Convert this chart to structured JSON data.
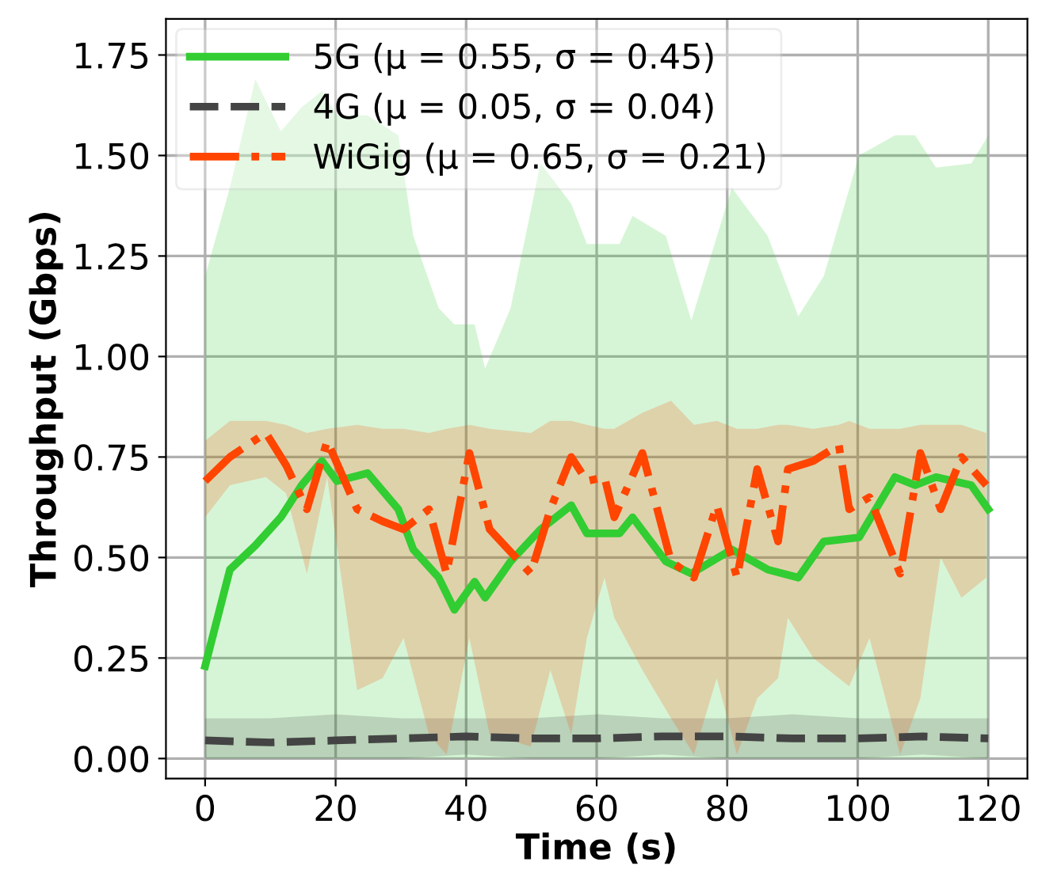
{
  "chart_data": {
    "type": "line",
    "xlabel": "Time (s)",
    "ylabel": "Throughput (Gbps)",
    "xlim": [
      -6,
      126
    ],
    "ylim": [
      -0.05,
      1.84
    ],
    "xticks": [
      0,
      20,
      40,
      60,
      80,
      100,
      120
    ],
    "yticks": [
      {
        "value": 0,
        "label": "0.00"
      },
      {
        "value": 0.25,
        "label": "0.25"
      },
      {
        "value": 0.5,
        "label": "0.50"
      },
      {
        "value": 0.75,
        "label": "0.75"
      },
      {
        "value": 1,
        "label": "1.00"
      },
      {
        "value": 1.25,
        "label": "1.25"
      },
      {
        "value": 1.5,
        "label": "1.50"
      },
      {
        "value": 1.75,
        "label": "1.75"
      }
    ],
    "grid": true,
    "legend": "top left",
    "series": [
      {
        "name": "5G (μ = 0.55, σ = 0.45)",
        "color": "#32cd32",
        "line_style": "solid",
        "x": [
          0,
          3.8,
          7.7,
          11.6,
          14.8,
          17.9,
          20.2,
          24.9,
          29.6,
          31.9,
          35.8,
          38.2,
          41.3,
          42.9,
          46.8,
          51.4,
          56.1,
          58.5,
          63.5,
          65.5,
          70.6,
          74.5,
          80.7,
          86.2,
          90.9,
          94.8,
          100.2,
          105.7,
          108.8,
          112,
          117.4,
          120
        ],
        "values": [
          0.23,
          0.47,
          0.53,
          0.6,
          0.68,
          0.74,
          0.69,
          0.71,
          0.62,
          0.52,
          0.45,
          0.37,
          0.44,
          0.4,
          0.49,
          0.57,
          0.63,
          0.56,
          0.56,
          0.6,
          0.49,
          0.46,
          0.52,
          0.47,
          0.45,
          0.54,
          0.55,
          0.7,
          0.68,
          0.7,
          0.68,
          0.62
        ],
        "upper": [
          1.2,
          1.42,
          1.69,
          1.56,
          1.62,
          1.66,
          1.6,
          1.6,
          1.55,
          1.3,
          1.12,
          1.08,
          1.08,
          0.97,
          1.12,
          1.48,
          1.38,
          1.28,
          1.28,
          1.35,
          1.3,
          1.09,
          1.42,
          1.3,
          1.1,
          1.2,
          1.5,
          1.55,
          1.55,
          1.47,
          1.48,
          1.55
        ],
        "lower": [
          0,
          0,
          0,
          0,
          0,
          0,
          0,
          0,
          0,
          0,
          0,
          0,
          0,
          0,
          0,
          0,
          0,
          0,
          0,
          0,
          0,
          0,
          0,
          0,
          0,
          0,
          0,
          0,
          0,
          0,
          0,
          0
        ]
      },
      {
        "name": "4G (μ = 0.05, σ = 0.04)",
        "color": "#444444",
        "line_style": "dashed",
        "x": [
          0,
          10,
          20,
          30,
          40,
          50,
          60,
          70,
          80,
          90,
          100,
          110,
          120
        ],
        "values": [
          0.045,
          0.04,
          0.045,
          0.05,
          0.055,
          0.05,
          0.05,
          0.055,
          0.055,
          0.05,
          0.05,
          0.055,
          0.05
        ],
        "upper": [
          0.1,
          0.1,
          0.11,
          0.1,
          0.1,
          0.1,
          0.11,
          0.1,
          0.1,
          0.11,
          0.1,
          0.1,
          0.1
        ],
        "lower": [
          0,
          0,
          0,
          0,
          0.01,
          0,
          0,
          0.01,
          0,
          0,
          0,
          0.01,
          0
        ]
      },
      {
        "name": "WiGig (μ = 0.65, σ = 0.21)",
        "color": "#ff4500",
        "line_style": "dashdot",
        "x": [
          0,
          3.8,
          9.3,
          12.4,
          15.6,
          18.7,
          23.3,
          27.2,
          30.4,
          34.3,
          37,
          40.5,
          43.6,
          49.9,
          52.9,
          56.1,
          58.5,
          61.2,
          62.7,
          67,
          71.4,
          74.9,
          78.4,
          81.5,
          84.6,
          87.8,
          89.3,
          93.2,
          97.1,
          98.7,
          101.8,
          106.5,
          109.6,
          112.7,
          115.9,
          119.7
        ],
        "values": [
          0.69,
          0.75,
          0.81,
          0.73,
          0.62,
          0.79,
          0.62,
          0.59,
          0.57,
          0.62,
          0.46,
          0.76,
          0.57,
          0.46,
          0.62,
          0.75,
          0.69,
          0.7,
          0.6,
          0.76,
          0.49,
          0.45,
          0.63,
          0.45,
          0.72,
          0.54,
          0.72,
          0.74,
          0.78,
          0.62,
          0.65,
          0.46,
          0.76,
          0.62,
          0.75,
          0.68
        ],
        "upper": [
          0.79,
          0.84,
          0.84,
          0.83,
          0.81,
          0.82,
          0.83,
          0.82,
          0.82,
          0.81,
          0.82,
          0.83,
          0.82,
          0.81,
          0.84,
          0.84,
          0.83,
          0.82,
          0.82,
          0.86,
          0.89,
          0.83,
          0.84,
          0.82,
          0.82,
          0.83,
          0.83,
          0.82,
          0.83,
          0.84,
          0.82,
          0.82,
          0.83,
          0.83,
          0.83,
          0.81
        ],
        "lower": [
          0.6,
          0.68,
          0.7,
          0.66,
          0.46,
          0.7,
          0.17,
          0.2,
          0.3,
          0.06,
          0.01,
          0.3,
          0.06,
          0.03,
          0.22,
          0.06,
          0.3,
          0.45,
          0.35,
          0.22,
          0.1,
          0.01,
          0.2,
          0.01,
          0.15,
          0.2,
          0.35,
          0.25,
          0.2,
          0.18,
          0.3,
          0.01,
          0.15,
          0.5,
          0.4,
          0.45
        ]
      }
    ]
  }
}
